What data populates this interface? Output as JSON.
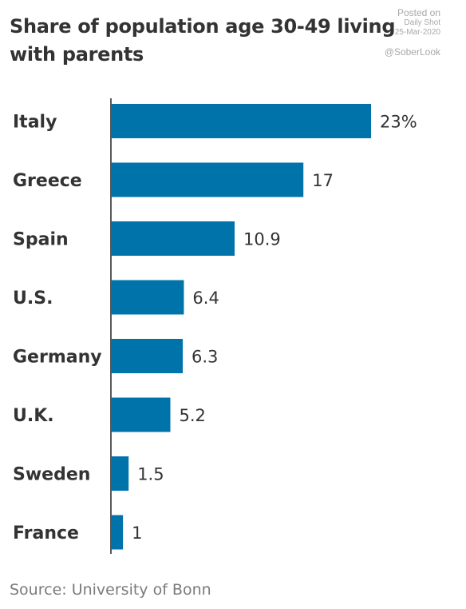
{
  "chart_data": {
    "type": "bar",
    "orientation": "horizontal",
    "title": "Share of population age 30-49 living with parents",
    "categories": [
      "Italy",
      "Greece",
      "Spain",
      "U.S.",
      "Germany",
      "U.K.",
      "Sweden",
      "France"
    ],
    "values": [
      23,
      17,
      10.9,
      6.4,
      6.3,
      5.2,
      1.5,
      1
    ],
    "value_labels": [
      "23%",
      "17",
      "10.9",
      "6.4",
      "6.3",
      "5.2",
      "1.5",
      "1"
    ],
    "xlim": [
      0,
      23
    ],
    "bar_color": "#0073aa",
    "grid": false,
    "source": "Source: University of Bonn"
  },
  "watermark": {
    "posted": "Posted on",
    "outlet": "Daily Shot",
    "date": "25-Mar-2020",
    "handle": "@SoberLook"
  }
}
